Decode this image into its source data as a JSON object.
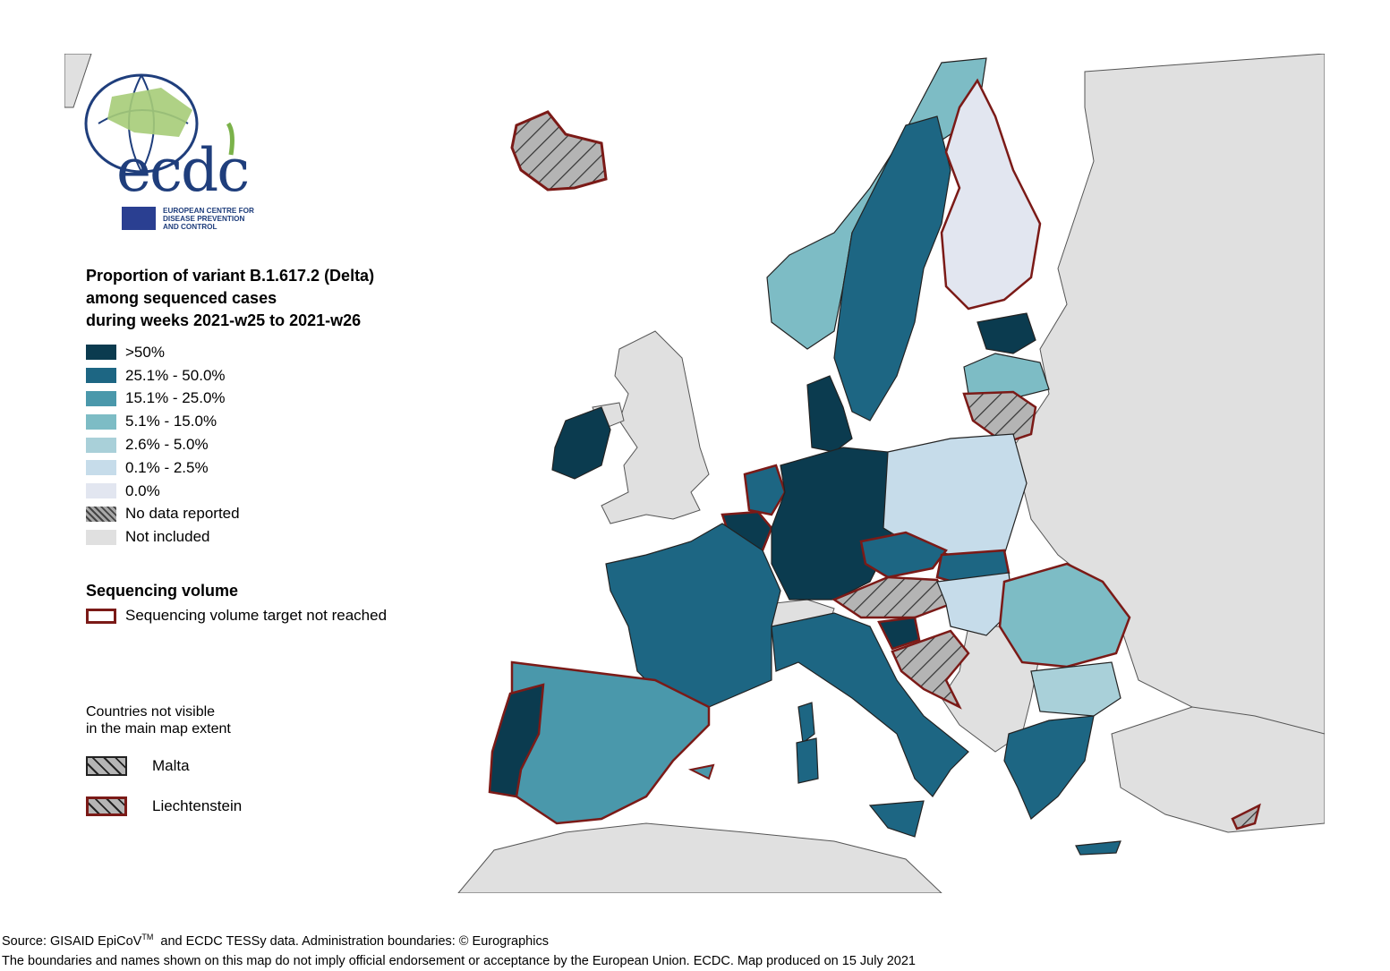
{
  "logo": {
    "wordmark": "ecdc",
    "org_name_lines": [
      "EUROPEAN CENTRE FOR",
      "DISEASE PREVENTION",
      "AND CONTROL"
    ]
  },
  "legend": {
    "title": "Proportion of variant B.1.617.2 (Delta)\namong sequenced cases\nduring weeks 2021-w25 to 2021-w26",
    "items": [
      {
        "label": ">50%",
        "color": "#0b3b4f"
      },
      {
        "label": "25.1% - 50.0%",
        "color": "#1d6683"
      },
      {
        "label": "15.1% - 25.0%",
        "color": "#4a98ab"
      },
      {
        "label": "5.1% - 15.0%",
        "color": "#7dbcc5"
      },
      {
        "label": "2.6% - 5.0%",
        "color": "#a9d0d9"
      },
      {
        "label": "0.1% - 2.5%",
        "color": "#c6dcea"
      },
      {
        "label": "0.0%",
        "color": "#e2e6f0"
      },
      {
        "label": "No data reported",
        "color": "hatched"
      },
      {
        "label": "Not included",
        "color": "#e0e0e0"
      }
    ]
  },
  "sequencing": {
    "title": "Sequencing volume",
    "target_label": "Sequencing volume target not reached",
    "border_color": "#7b1a17"
  },
  "not_visible": {
    "title": "Countries not visible\nin the main map extent",
    "items": [
      {
        "label": "Malta",
        "target_missed": false
      },
      {
        "label": "Liechtenstein",
        "target_missed": true
      }
    ]
  },
  "footer": {
    "line1_pre": "Source: GISAID EpiCoV",
    "line1_sup": "TM",
    "line1_post": "  and ECDC TESSy data. Administration boundaries: © Eurographics",
    "line2": "The boundaries and names shown on this map do not imply official endorsement or acceptance by the European Union. ECDC. Map produced on 15 July 2021"
  },
  "countries": [
    {
      "name": "Iceland",
      "category": "No data reported",
      "target_missed": true
    },
    {
      "name": "Norway",
      "category": "5.1% - 15.0%",
      "target_missed": false
    },
    {
      "name": "Sweden",
      "category": "25.1% - 50.0%",
      "target_missed": false
    },
    {
      "name": "Finland",
      "category": "0.0%",
      "target_missed": true
    },
    {
      "name": "Estonia",
      "category": ">50%",
      "target_missed": false
    },
    {
      "name": "Latvia",
      "category": "5.1% - 15.0%",
      "target_missed": false
    },
    {
      "name": "Lithuania",
      "category": "No data reported",
      "target_missed": true
    },
    {
      "name": "Ireland",
      "category": ">50%",
      "target_missed": false
    },
    {
      "name": "Denmark",
      "category": ">50%",
      "target_missed": false
    },
    {
      "name": "Netherlands",
      "category": "25.1% - 50.0%",
      "target_missed": true
    },
    {
      "name": "Belgium",
      "category": ">50%",
      "target_missed": true
    },
    {
      "name": "Luxembourg",
      "category": ">50%",
      "target_missed": true
    },
    {
      "name": "Germany",
      "category": ">50%",
      "target_missed": false
    },
    {
      "name": "Poland",
      "category": "0.1% - 2.5%",
      "target_missed": false
    },
    {
      "name": "Czechia",
      "category": "25.1% - 50.0%",
      "target_missed": true
    },
    {
      "name": "Slovakia",
      "category": "25.1% - 50.0%",
      "target_missed": true
    },
    {
      "name": "Austria",
      "category": "No data reported",
      "target_missed": true
    },
    {
      "name": "Hungary",
      "category": "0.1% - 2.5%",
      "target_missed": false
    },
    {
      "name": "Slovenia",
      "category": ">50%",
      "target_missed": true
    },
    {
      "name": "Croatia",
      "category": "No data reported",
      "target_missed": true
    },
    {
      "name": "Romania",
      "category": "5.1% - 15.0%",
      "target_missed": true
    },
    {
      "name": "Bulgaria",
      "category": "2.6% - 5.0%",
      "target_missed": false
    },
    {
      "name": "Greece",
      "category": "25.1% - 50.0%",
      "target_missed": false
    },
    {
      "name": "Cyprus",
      "category": "No data reported",
      "target_missed": true
    },
    {
      "name": "France",
      "category": "25.1% - 50.0%",
      "target_missed": false
    },
    {
      "name": "Italy",
      "category": "25.1% - 50.0%",
      "target_missed": false
    },
    {
      "name": "Spain",
      "category": "15.1% - 25.0%",
      "target_missed": true
    },
    {
      "name": "Portugal",
      "category": ">50%",
      "target_missed": true
    }
  ]
}
